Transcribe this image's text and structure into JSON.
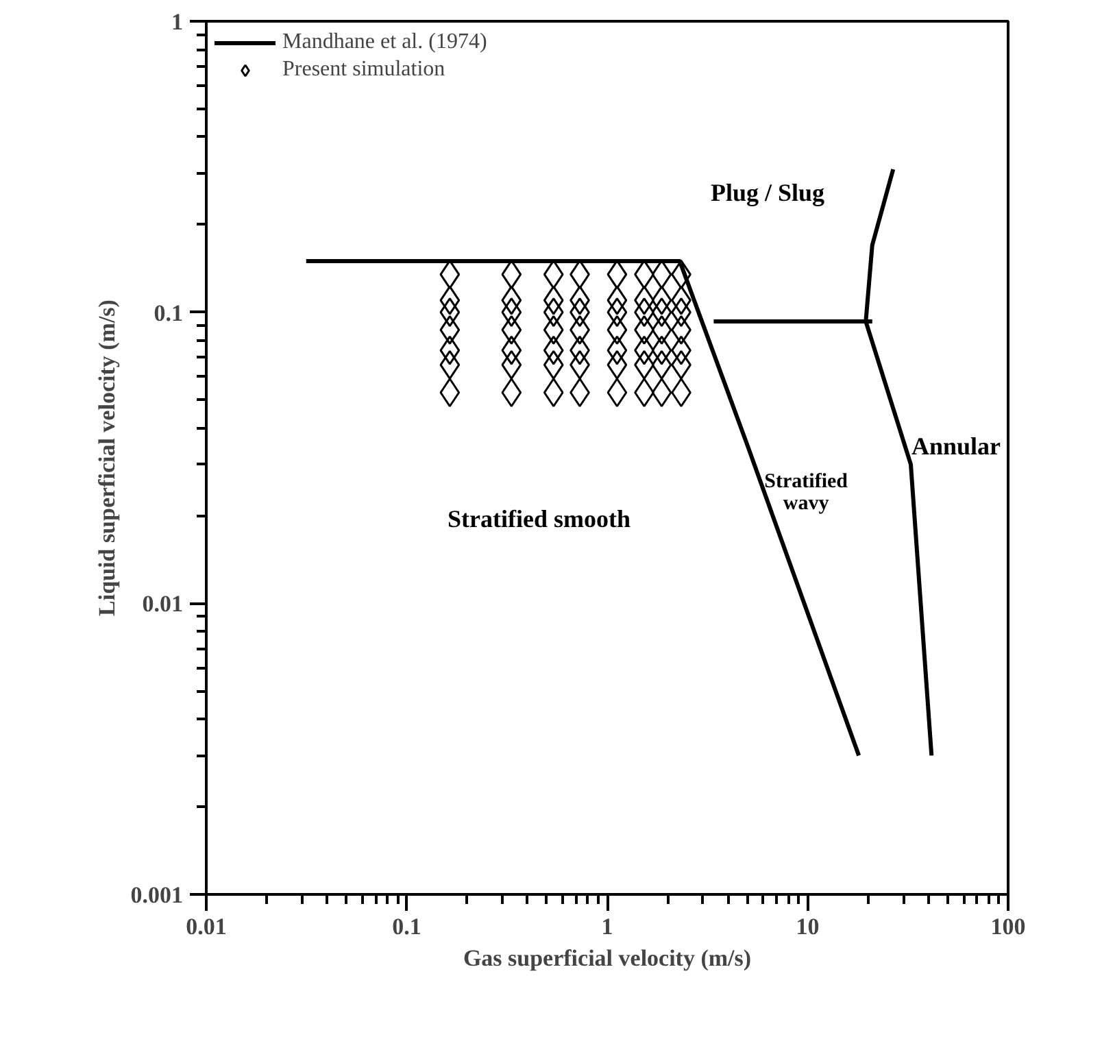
{
  "chart_data": {
    "type": "line",
    "xlabel": "Gas superficial velocity (m/s)",
    "ylabel": "Liquid superficial velocity (m/s)",
    "log": "xy",
    "xlim": [
      0.01,
      100
    ],
    "ylim": [
      0.001,
      1
    ],
    "xticks": [
      0.01,
      0.1,
      1,
      10,
      100
    ],
    "yticks": [
      0.001,
      0.01,
      0.1,
      1
    ],
    "legend": "top left",
    "grid": false,
    "series": [
      {
        "name": "Mandhane et al. (1974)",
        "color": "#000000",
        "line_style": "solid",
        "marker": "none",
        "x": [
          0.0315,
          2.3,
          5.0,
          18,
          null,
          3.4,
          21,
          null,
          26.7,
          21,
          19.5,
          32.7,
          41.5
        ],
        "values": [
          0.15,
          0.15,
          0.035,
          0.003,
          null,
          0.093,
          0.093,
          null,
          0.31,
          0.17,
          0.093,
          0.03,
          0.003
        ]
      },
      {
        "name": "Present simulation",
        "type": "scatter",
        "color": "#000000",
        "marker": "diamond",
        "x": [
          0.164,
          0.164,
          0.164,
          0.164,
          0.164,
          0.164,
          0.164,
          0.333,
          0.333,
          0.333,
          0.333,
          0.333,
          0.333,
          0.333,
          0.54,
          0.54,
          0.54,
          0.54,
          0.54,
          0.54,
          0.54,
          0.73,
          0.73,
          0.73,
          0.73,
          0.73,
          0.73,
          0.73,
          1.12,
          1.12,
          1.12,
          1.12,
          1.12,
          1.12,
          1.12,
          1.53,
          1.53,
          1.53,
          1.53,
          1.53,
          1.53,
          1.53,
          1.87,
          1.87,
          1.87,
          1.87,
          1.87,
          1.87,
          1.87,
          2.34,
          2.34,
          2.34,
          2.34,
          2.34,
          2.34,
          2.34
        ],
        "values": [
          0.135,
          0.11,
          0.1,
          0.087,
          0.074,
          0.066,
          0.053,
          0.135,
          0.11,
          0.1,
          0.087,
          0.074,
          0.066,
          0.053,
          0.135,
          0.11,
          0.1,
          0.087,
          0.074,
          0.066,
          0.053,
          0.135,
          0.11,
          0.1,
          0.087,
          0.074,
          0.066,
          0.053,
          0.135,
          0.11,
          0.1,
          0.087,
          0.074,
          0.066,
          0.053,
          0.135,
          0.11,
          0.1,
          0.087,
          0.074,
          0.066,
          0.053,
          0.135,
          0.11,
          0.1,
          0.087,
          0.074,
          0.066,
          0.053,
          0.135,
          0.11,
          0.1,
          0.087,
          0.074,
          0.066,
          0.053
        ]
      }
    ],
    "annotations": [
      "Plug / Slug",
      "Stratified smooth",
      "Stratified\nwavy",
      "Annular"
    ]
  }
}
